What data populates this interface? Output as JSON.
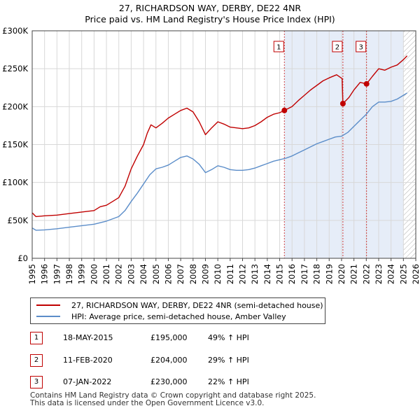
{
  "title_line1": "27, RICHARDSON WAY, DERBY, DE22 4NR",
  "title_line2": "Price paid vs. HM Land Registry's House Price Index (HPI)",
  "colors": {
    "property_line": "#c00000",
    "hpi_line": "#5b8dc9",
    "shade": "#e6edf8",
    "marker_border": "#c00000",
    "grid": "#d8d8d8",
    "vline": "#d04040"
  },
  "legend": {
    "property_label": "27, RICHARDSON WAY, DERBY, DE22 4NR (semi-detached house)",
    "hpi_label": "HPI: Average price, semi-detached house, Amber Valley"
  },
  "sales": [
    {
      "num": "1",
      "date": "18-MAY-2015",
      "price": "£195,000",
      "hpi": "49% ↑ HPI"
    },
    {
      "num": "2",
      "date": "11-FEB-2020",
      "price": "£204,000",
      "hpi": "29% ↑ HPI"
    },
    {
      "num": "3",
      "date": "07-JAN-2022",
      "price": "£230,000",
      "hpi": "22% ↑ HPI"
    }
  ],
  "footer_line1": "Contains HM Land Registry data © Crown copyright and database right 2025.",
  "footer_line2": "This data is licensed under the Open Government Licence v3.0.",
  "chart_data": {
    "type": "line",
    "xlim": [
      1995,
      2026
    ],
    "ylim": [
      0,
      300000
    ],
    "x_ticks": [
      1995,
      1996,
      1997,
      1998,
      1999,
      2000,
      2001,
      2002,
      2003,
      2004,
      2005,
      2006,
      2007,
      2008,
      2009,
      2010,
      2011,
      2012,
      2013,
      2014,
      2015,
      2016,
      2017,
      2018,
      2019,
      2020,
      2021,
      2022,
      2023,
      2024,
      2025,
      2026
    ],
    "y_ticks": [
      {
        "value": 0,
        "label": "£0"
      },
      {
        "value": 50000,
        "label": "£50K"
      },
      {
        "value": 100000,
        "label": "£100K"
      },
      {
        "value": 150000,
        "label": "£150K"
      },
      {
        "value": 200000,
        "label": "£200K"
      },
      {
        "value": 250000,
        "label": "£250K"
      },
      {
        "value": 300000,
        "label": "£300K"
      }
    ],
    "shade_from": 2015.38,
    "hatch_from": 2025.0,
    "series": [
      {
        "name": "27, RICHARDSON WAY, DERBY, DE22 4NR (semi-detached house)",
        "color": "#c00000",
        "points": [
          [
            1995,
            60000
          ],
          [
            1995.3,
            55000
          ],
          [
            1996,
            56000
          ],
          [
            1997,
            57000
          ],
          [
            1998,
            59000
          ],
          [
            1999,
            61000
          ],
          [
            2000,
            63000
          ],
          [
            2000.5,
            68000
          ],
          [
            2001,
            70000
          ],
          [
            2001.5,
            75000
          ],
          [
            2002,
            80000
          ],
          [
            2002.5,
            95000
          ],
          [
            2003,
            118000
          ],
          [
            2003.5,
            135000
          ],
          [
            2004,
            150000
          ],
          [
            2004.3,
            165000
          ],
          [
            2004.6,
            176000
          ],
          [
            2005,
            172000
          ],
          [
            2005.5,
            178000
          ],
          [
            2006,
            185000
          ],
          [
            2006.5,
            190000
          ],
          [
            2007,
            195000
          ],
          [
            2007.5,
            198000
          ],
          [
            2008,
            193000
          ],
          [
            2008.5,
            180000
          ],
          [
            2009,
            163000
          ],
          [
            2009.5,
            172000
          ],
          [
            2010,
            180000
          ],
          [
            2010.5,
            177000
          ],
          [
            2011,
            173000
          ],
          [
            2011.5,
            172000
          ],
          [
            2012,
            171000
          ],
          [
            2012.5,
            172000
          ],
          [
            2013,
            175000
          ],
          [
            2013.5,
            180000
          ],
          [
            2014,
            186000
          ],
          [
            2014.5,
            190000
          ],
          [
            2015,
            192000
          ],
          [
            2015.38,
            195000
          ],
          [
            2016,
            200000
          ],
          [
            2016.5,
            208000
          ],
          [
            2017,
            215000
          ],
          [
            2017.5,
            222000
          ],
          [
            2018,
            228000
          ],
          [
            2018.5,
            234000
          ],
          [
            2019,
            238000
          ],
          [
            2019.6,
            242000
          ],
          [
            2020.05,
            237000
          ],
          [
            2020.11,
            204000
          ],
          [
            2020.6,
            212000
          ],
          [
            2021,
            222000
          ],
          [
            2021.5,
            232000
          ],
          [
            2022.02,
            230000
          ],
          [
            2022.5,
            240000
          ],
          [
            2023,
            250000
          ],
          [
            2023.5,
            248000
          ],
          [
            2024,
            252000
          ],
          [
            2024.5,
            255000
          ],
          [
            2025,
            262000
          ],
          [
            2025.3,
            267000
          ]
        ]
      },
      {
        "name": "HPI: Average price, semi-detached house, Amber Valley",
        "color": "#5b8dc9",
        "points": [
          [
            1995,
            40000
          ],
          [
            1995.3,
            37000
          ],
          [
            1996,
            37500
          ],
          [
            1997,
            39000
          ],
          [
            1998,
            41000
          ],
          [
            1999,
            43000
          ],
          [
            2000,
            45000
          ],
          [
            2001,
            49000
          ],
          [
            2002,
            55000
          ],
          [
            2002.5,
            63000
          ],
          [
            2003,
            75000
          ],
          [
            2003.5,
            86000
          ],
          [
            2004,
            98000
          ],
          [
            2004.5,
            110000
          ],
          [
            2005,
            118000
          ],
          [
            2005.5,
            120000
          ],
          [
            2006,
            123000
          ],
          [
            2006.5,
            128000
          ],
          [
            2007,
            133000
          ],
          [
            2007.5,
            135000
          ],
          [
            2008,
            131000
          ],
          [
            2008.5,
            124000
          ],
          [
            2009,
            113000
          ],
          [
            2009.5,
            117000
          ],
          [
            2010,
            122000
          ],
          [
            2010.5,
            120000
          ],
          [
            2011,
            117000
          ],
          [
            2011.5,
            116000
          ],
          [
            2012,
            116000
          ],
          [
            2012.5,
            117000
          ],
          [
            2013,
            119000
          ],
          [
            2013.5,
            122000
          ],
          [
            2014,
            125000
          ],
          [
            2014.5,
            128000
          ],
          [
            2015,
            130000
          ],
          [
            2015.5,
            132000
          ],
          [
            2016,
            135000
          ],
          [
            2016.5,
            139000
          ],
          [
            2017,
            143000
          ],
          [
            2017.5,
            147000
          ],
          [
            2018,
            151000
          ],
          [
            2018.5,
            154000
          ],
          [
            2019,
            157000
          ],
          [
            2019.5,
            160000
          ],
          [
            2020,
            161000
          ],
          [
            2020.5,
            166000
          ],
          [
            2021,
            174000
          ],
          [
            2021.5,
            182000
          ],
          [
            2022,
            190000
          ],
          [
            2022.5,
            200000
          ],
          [
            2023,
            206000
          ],
          [
            2023.5,
            206000
          ],
          [
            2024,
            207000
          ],
          [
            2024.5,
            210000
          ],
          [
            2025,
            215000
          ],
          [
            2025.3,
            218000
          ]
        ]
      }
    ],
    "markers": [
      {
        "label": "1",
        "x": 2015.38,
        "y": 195000
      },
      {
        "label": "2",
        "x": 2020.11,
        "y": 204000
      },
      {
        "label": "3",
        "x": 2022.02,
        "y": 230000
      }
    ]
  }
}
